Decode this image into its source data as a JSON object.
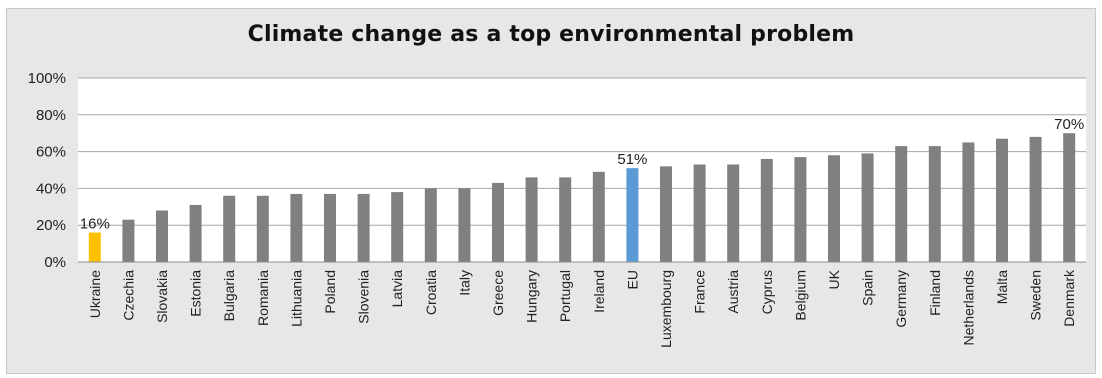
{
  "chart_data": {
    "type": "bar",
    "title": "Climate change as a top environmental problem",
    "xlabel": "",
    "ylabel": "",
    "ylim": [
      0,
      100
    ],
    "yticks": [
      "0%",
      "20%",
      "40%",
      "60%",
      "80%",
      "100%"
    ],
    "grid": true,
    "legend": "none",
    "categories": [
      "Ukraine",
      "Czechia",
      "Slovakia",
      "Estonia",
      "Bulgaria",
      "Romania",
      "Lithuania",
      "Poland",
      "Slovenia",
      "Latvia",
      "Croatia",
      "Italy",
      "Greece",
      "Hungary",
      "Portugal",
      "Ireland",
      "EU",
      "Luxembourg",
      "France",
      "Austria",
      "Cyprus",
      "Belgium",
      "UK",
      "Spain",
      "Germany",
      "Finland",
      "Netherlands",
      "Malta",
      "Sweden",
      "Denmark"
    ],
    "values": [
      16,
      23,
      28,
      31,
      36,
      36,
      37,
      37,
      37,
      38,
      40,
      40,
      43,
      46,
      46,
      49,
      51,
      52,
      53,
      53,
      56,
      57,
      58,
      59,
      63,
      63,
      65,
      67,
      68,
      70
    ],
    "data_labels": {
      "Ukraine": "16%",
      "EU": "51%",
      "Denmark": "70%"
    },
    "colors": {
      "default": "#808080",
      "Ukraine": "#ffc000",
      "EU": "#5b9bd5",
      "gridline": "#a6a6a6",
      "background": "#e7e7e7",
      "plot_area": "#ffffff"
    }
  }
}
